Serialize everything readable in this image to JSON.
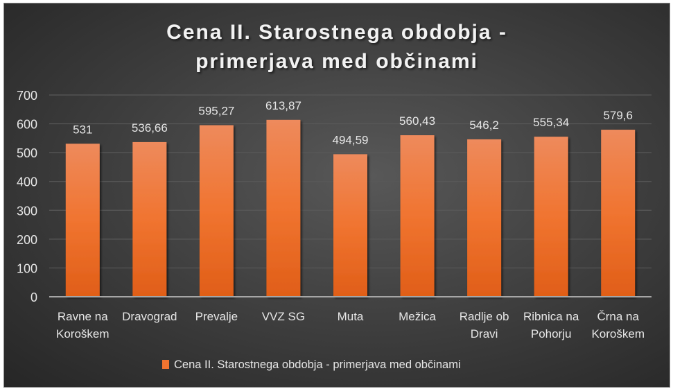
{
  "chart_data": {
    "type": "bar",
    "title_lines": [
      "Cena II. Starostnega obdobja -",
      "primerjava med občinami"
    ],
    "categories": [
      [
        "Ravne na",
        "Koroškem"
      ],
      [
        "Dravograd"
      ],
      [
        "Prevalje"
      ],
      [
        "VVZ SG"
      ],
      [
        "Muta"
      ],
      [
        "Mežica"
      ],
      [
        "Radlje ob",
        "Dravi"
      ],
      [
        "Ribnica na",
        "Pohorju"
      ],
      [
        "Črna na",
        "Koroškem"
      ]
    ],
    "values": [
      531,
      536.66,
      595.27,
      613.87,
      494.59,
      560.43,
      546.2,
      555.34,
      579.6
    ],
    "data_labels": [
      "531",
      "536,66",
      "595,27",
      "613,87",
      "494,59",
      "560,43",
      "546,2",
      "555,34",
      "579,6"
    ],
    "yticks": [
      0,
      100,
      200,
      300,
      400,
      500,
      600,
      700
    ],
    "ylim": [
      0,
      700
    ],
    "grid": true,
    "legend": {
      "position": "bottom",
      "label": "Cena II. Starostnega obdobja - primerjava med občinami"
    },
    "colors": {
      "bar_top": "#ee8a5c",
      "bar_mid": "#f07430",
      "bar_bottom": "#e05e18",
      "text": "#e6e6e6",
      "grid": "#595959"
    }
  }
}
